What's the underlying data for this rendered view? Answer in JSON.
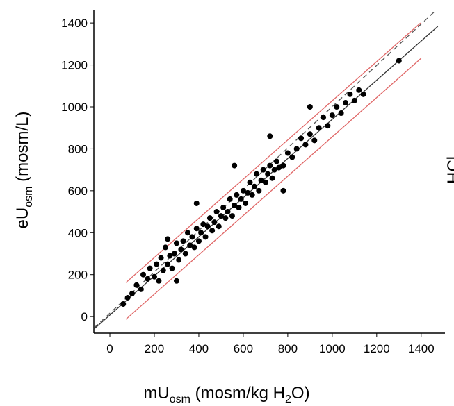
{
  "chart_data": {
    "type": "scatter",
    "xlabel": {
      "main": "mU",
      "sub": "osm",
      "rest": " (mosm/kg H",
      "sub2": "2",
      "end": "O)"
    },
    "ylabel": {
      "main": "eU",
      "sub": "osm",
      "rest": " (mosm/L)"
    },
    "side_text": "HCl",
    "x": [
      60,
      80,
      100,
      120,
      140,
      150,
      170,
      180,
      200,
      210,
      220,
      230,
      240,
      250,
      260,
      270,
      280,
      290,
      300,
      310,
      320,
      330,
      340,
      350,
      360,
      370,
      380,
      390,
      400,
      410,
      420,
      430,
      440,
      450,
      460,
      470,
      480,
      490,
      500,
      510,
      520,
      530,
      540,
      550,
      560,
      570,
      580,
      590,
      600,
      610,
      620,
      630,
      640,
      650,
      660,
      670,
      680,
      690,
      700,
      710,
      720,
      730,
      740,
      750,
      760,
      780,
      800,
      820,
      840,
      860,
      880,
      900,
      920,
      940,
      960,
      980,
      1000,
      1020,
      1040,
      1060,
      1080,
      1100,
      1120,
      1140,
      1300,
      260,
      390,
      560,
      720,
      900,
      780,
      300
    ],
    "values": [
      60,
      90,
      110,
      150,
      130,
      200,
      180,
      230,
      190,
      250,
      170,
      280,
      220,
      330,
      250,
      290,
      230,
      300,
      350,
      270,
      320,
      360,
      300,
      400,
      340,
      380,
      330,
      420,
      360,
      400,
      440,
      380,
      430,
      470,
      410,
      450,
      500,
      430,
      480,
      520,
      470,
      500,
      560,
      480,
      530,
      580,
      520,
      560,
      600,
      540,
      590,
      640,
      580,
      620,
      680,
      600,
      650,
      700,
      640,
      680,
      720,
      660,
      700,
      740,
      710,
      720,
      780,
      760,
      800,
      850,
      820,
      870,
      840,
      900,
      950,
      910,
      960,
      1000,
      970,
      1020,
      1060,
      1030,
      1080,
      1060,
      1220,
      370,
      540,
      720,
      860,
      1000,
      600,
      170
    ],
    "color": "#000000",
    "lines": [
      {
        "x": [
          -70,
          1466
        ],
        "values": [
          -53,
          1460
        ],
        "color": "#555555",
        "dash": true
      },
      {
        "x": [
          -72,
          1475
        ],
        "values": [
          -60,
          1384
        ],
        "color": "#333333",
        "dash": false
      },
      {
        "x": [
          72,
          1397
        ],
        "values": [
          162,
          1400
        ],
        "color": "#e06666",
        "dash": false
      },
      {
        "x": [
          72,
          1400
        ],
        "values": [
          -13,
          1232
        ],
        "color": "#e06666",
        "dash": false
      }
    ],
    "xlim": [
      -72,
      1507
    ],
    "ylim": [
      -79,
      1460
    ],
    "xticks": [
      0,
      200,
      400,
      600,
      800,
      1000,
      1200,
      1400
    ],
    "yticks": [
      0,
      200,
      400,
      600,
      800,
      1000,
      1200,
      1400
    ]
  }
}
